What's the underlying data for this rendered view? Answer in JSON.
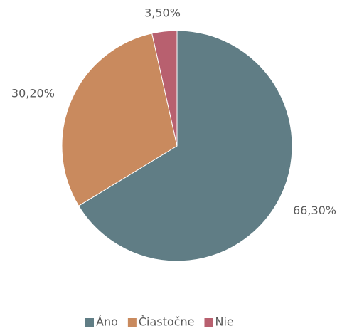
{
  "chart_data": {
    "type": "pie",
    "categories": [
      "Áno",
      "Čiastočne",
      "Nie"
    ],
    "values": [
      66.3,
      30.2,
      3.5
    ],
    "value_labels": [
      "66,30%",
      "30,20%",
      "3,50%"
    ],
    "colors": [
      "#607d85",
      "#c98a5e",
      "#b8606f"
    ],
    "legend": "bottom"
  }
}
